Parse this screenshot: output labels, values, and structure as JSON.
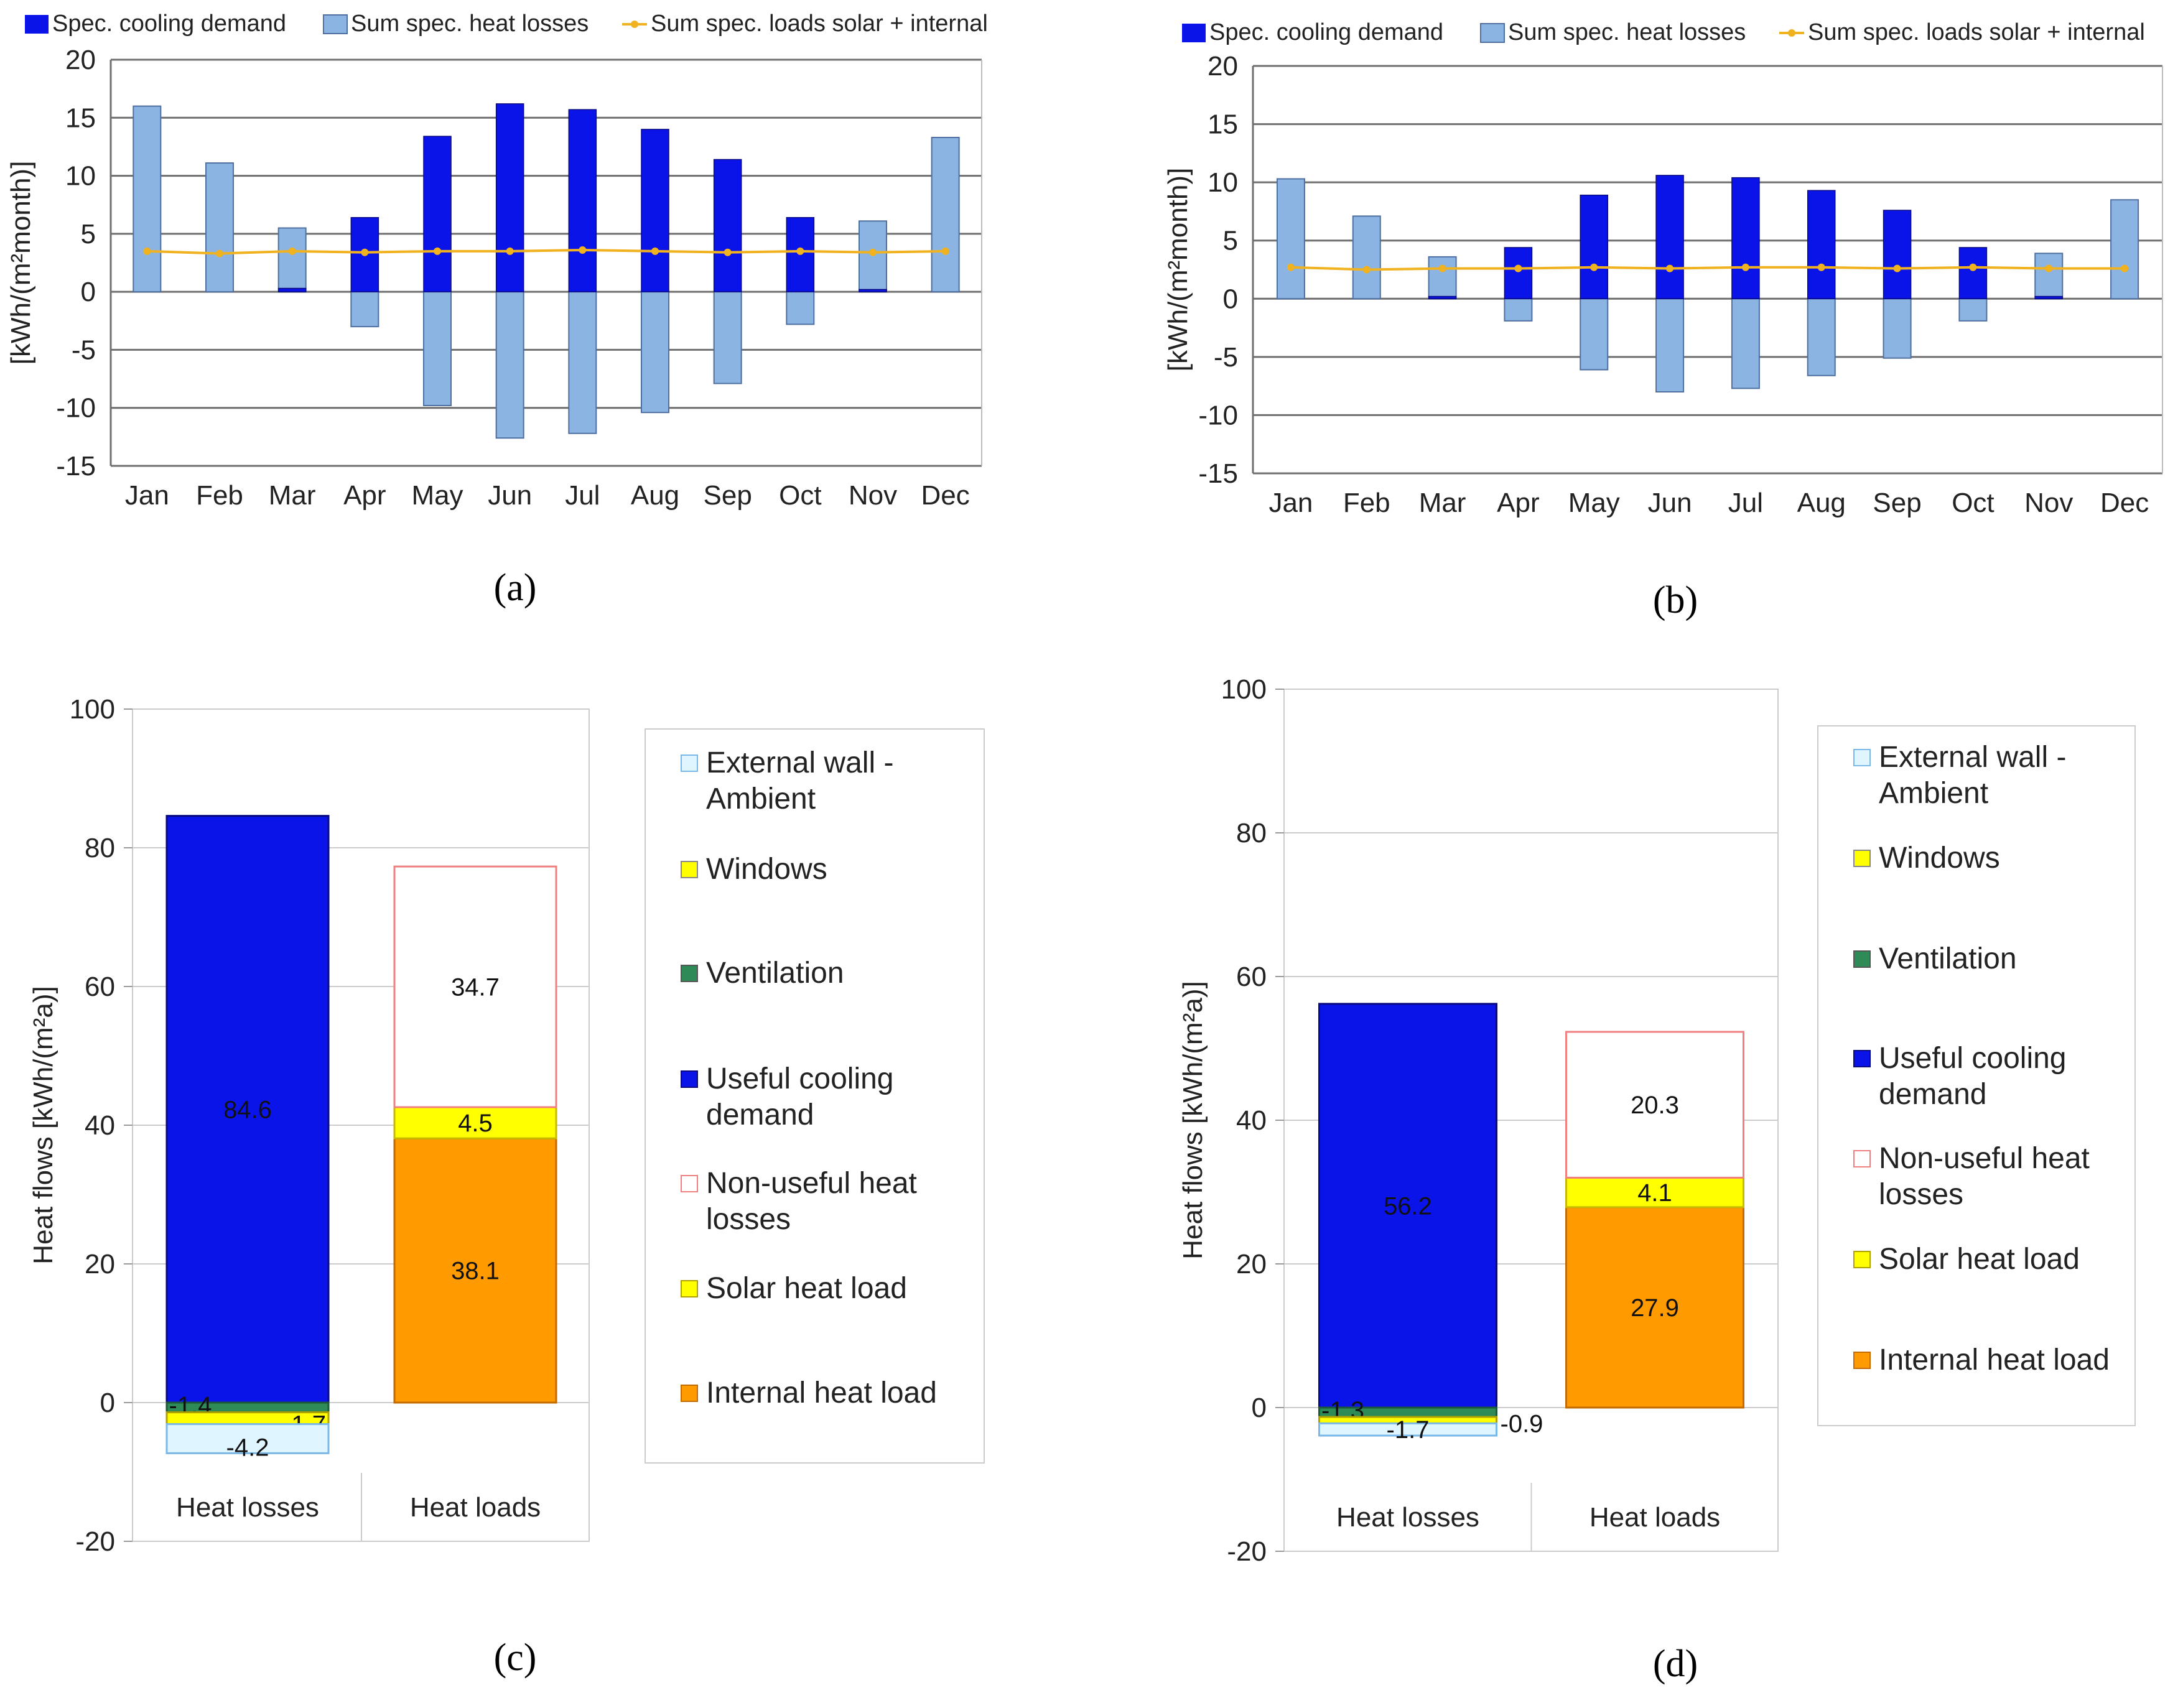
{
  "colors": {
    "cooling": "#0a14e8",
    "losses": "#8cb4e2",
    "losses_edge": "#4e6fa0",
    "line": "#f0b21e",
    "ext_wall": "#dff5ff",
    "ext_wall_edge": "#7ab8e8",
    "windows": "#ffff00",
    "ventilation": "#2e8b57",
    "non_useful_edge": "#f08080",
    "solar": "#ffff00",
    "internal": "#ff9a00",
    "grid": "#888888"
  },
  "chart_data": [
    {
      "id": "a",
      "panel_label": "(a)",
      "type": "bar",
      "categories": [
        "Jan",
        "Feb",
        "Mar",
        "Apr",
        "May",
        "Jun",
        "Jul",
        "Aug",
        "Sep",
        "Oct",
        "Nov",
        "Dec"
      ],
      "ylim": [
        -15,
        20
      ],
      "yticks": [
        "20",
        "15",
        "10",
        "5",
        "0",
        "-5",
        "-10",
        "-15"
      ],
      "ylabel": "[kWh/(m²month)]",
      "legend": [
        "Spec. cooling demand",
        "Sum spec. heat losses",
        "Sum spec. loads solar + internal"
      ],
      "series": [
        {
          "name": "Spec. cooling demand",
          "values": [
            0,
            0,
            0.3,
            6.4,
            13.4,
            16.2,
            15.7,
            14.0,
            11.4,
            6.4,
            0.2,
            0
          ]
        },
        {
          "name": "Sum spec. heat losses",
          "values": [
            16.0,
            11.1,
            5.5,
            -3.0,
            -9.8,
            -12.6,
            -12.2,
            -10.4,
            -7.9,
            -2.8,
            6.1,
            13.3
          ]
        },
        {
          "name": "Sum spec. loads solar + internal",
          "values": [
            3.5,
            3.3,
            3.5,
            3.4,
            3.5,
            3.5,
            3.6,
            3.5,
            3.4,
            3.5,
            3.4,
            3.5
          ]
        }
      ]
    },
    {
      "id": "b",
      "panel_label": "(b)",
      "type": "bar",
      "categories": [
        "Jan",
        "Feb",
        "Mar",
        "Apr",
        "May",
        "Jun",
        "Jul",
        "Aug",
        "Sep",
        "Oct",
        "Nov",
        "Dec"
      ],
      "ylim": [
        -15,
        20
      ],
      "yticks": [
        "20",
        "15",
        "10",
        "5",
        "0",
        "-5",
        "-10",
        "-15"
      ],
      "ylabel": "[kWh/(m²month)]",
      "legend": [
        "Spec. cooling demand",
        "Sum spec. heat losses",
        "Sum spec. loads solar + internal"
      ],
      "series": [
        {
          "name": "Spec. cooling demand",
          "values": [
            0,
            0,
            0.2,
            4.4,
            8.9,
            10.6,
            10.4,
            9.3,
            7.6,
            4.4,
            0.2,
            0
          ]
        },
        {
          "name": "Sum spec. heat losses",
          "values": [
            10.3,
            7.1,
            3.6,
            -1.9,
            -6.1,
            -8.0,
            -7.7,
            -6.6,
            -5.1,
            -1.9,
            3.9,
            8.5
          ]
        },
        {
          "name": "Sum spec. loads solar + internal",
          "values": [
            2.7,
            2.5,
            2.6,
            2.6,
            2.7,
            2.6,
            2.7,
            2.7,
            2.6,
            2.7,
            2.6,
            2.6
          ]
        }
      ]
    },
    {
      "id": "c",
      "panel_label": "(c)",
      "type": "bar",
      "stacked": true,
      "categories": [
        "Heat losses",
        "Heat loads"
      ],
      "ylim": [
        -20,
        100
      ],
      "yticks": [
        "100",
        "80",
        "60",
        "40",
        "20",
        "0",
        "-20"
      ],
      "ylabel": "Heat flows [kWh/(m²a)]",
      "legend": [
        "External wall - Ambient",
        "Windows",
        "Ventilation",
        "Useful cooling demand",
        "Non-useful heat losses",
        "Solar heat load",
        "Internal heat load"
      ],
      "series": [
        {
          "name": "Useful cooling demand",
          "category": "Heat losses",
          "value": 84.6,
          "label": "84.6"
        },
        {
          "name": "Ventilation",
          "category": "Heat losses",
          "value": -1.4,
          "label": "-1.4"
        },
        {
          "name": "Windows",
          "category": "Heat losses",
          "value": -1.7,
          "label": "-1.7"
        },
        {
          "name": "External wall - Ambient",
          "category": "Heat losses",
          "value": -4.2,
          "label": "-4.2"
        },
        {
          "name": "Internal heat load",
          "category": "Heat loads",
          "value": 38.1,
          "label": "38.1"
        },
        {
          "name": "Solar heat load",
          "category": "Heat loads",
          "value": 4.5,
          "label": "4.5"
        },
        {
          "name": "Non-useful heat losses",
          "category": "Heat loads",
          "value": 34.7,
          "label": "34.7"
        }
      ]
    },
    {
      "id": "d",
      "panel_label": "(d)",
      "type": "bar",
      "stacked": true,
      "categories": [
        "Heat losses",
        "Heat loads"
      ],
      "ylim": [
        -20,
        100
      ],
      "yticks": [
        "100",
        "80",
        "60",
        "40",
        "20",
        "0",
        "-20"
      ],
      "ylabel": "Heat flows [kWh/(m²a)]",
      "legend": [
        "External wall - Ambient",
        "Windows",
        "Ventilation",
        "Useful cooling demand",
        "Non-useful heat losses",
        "Solar heat load",
        "Internal heat load"
      ],
      "series": [
        {
          "name": "Useful cooling demand",
          "category": "Heat losses",
          "value": 56.2,
          "label": "56.2"
        },
        {
          "name": "Ventilation",
          "category": "Heat losses",
          "value": -1.3,
          "label": "-1.3"
        },
        {
          "name": "Windows",
          "category": "Heat losses",
          "value": -0.9,
          "label": "-0.9"
        },
        {
          "name": "External wall - Ambient",
          "category": "Heat losses",
          "value": -1.7,
          "label": "-1.7"
        },
        {
          "name": "Internal heat load",
          "category": "Heat loads",
          "value": 27.9,
          "label": "27.9"
        },
        {
          "name": "Solar heat load",
          "category": "Heat loads",
          "value": 4.1,
          "label": "4.1"
        },
        {
          "name": "Non-useful heat losses",
          "category": "Heat loads",
          "value": 20.3,
          "label": "20.3"
        }
      ]
    }
  ]
}
